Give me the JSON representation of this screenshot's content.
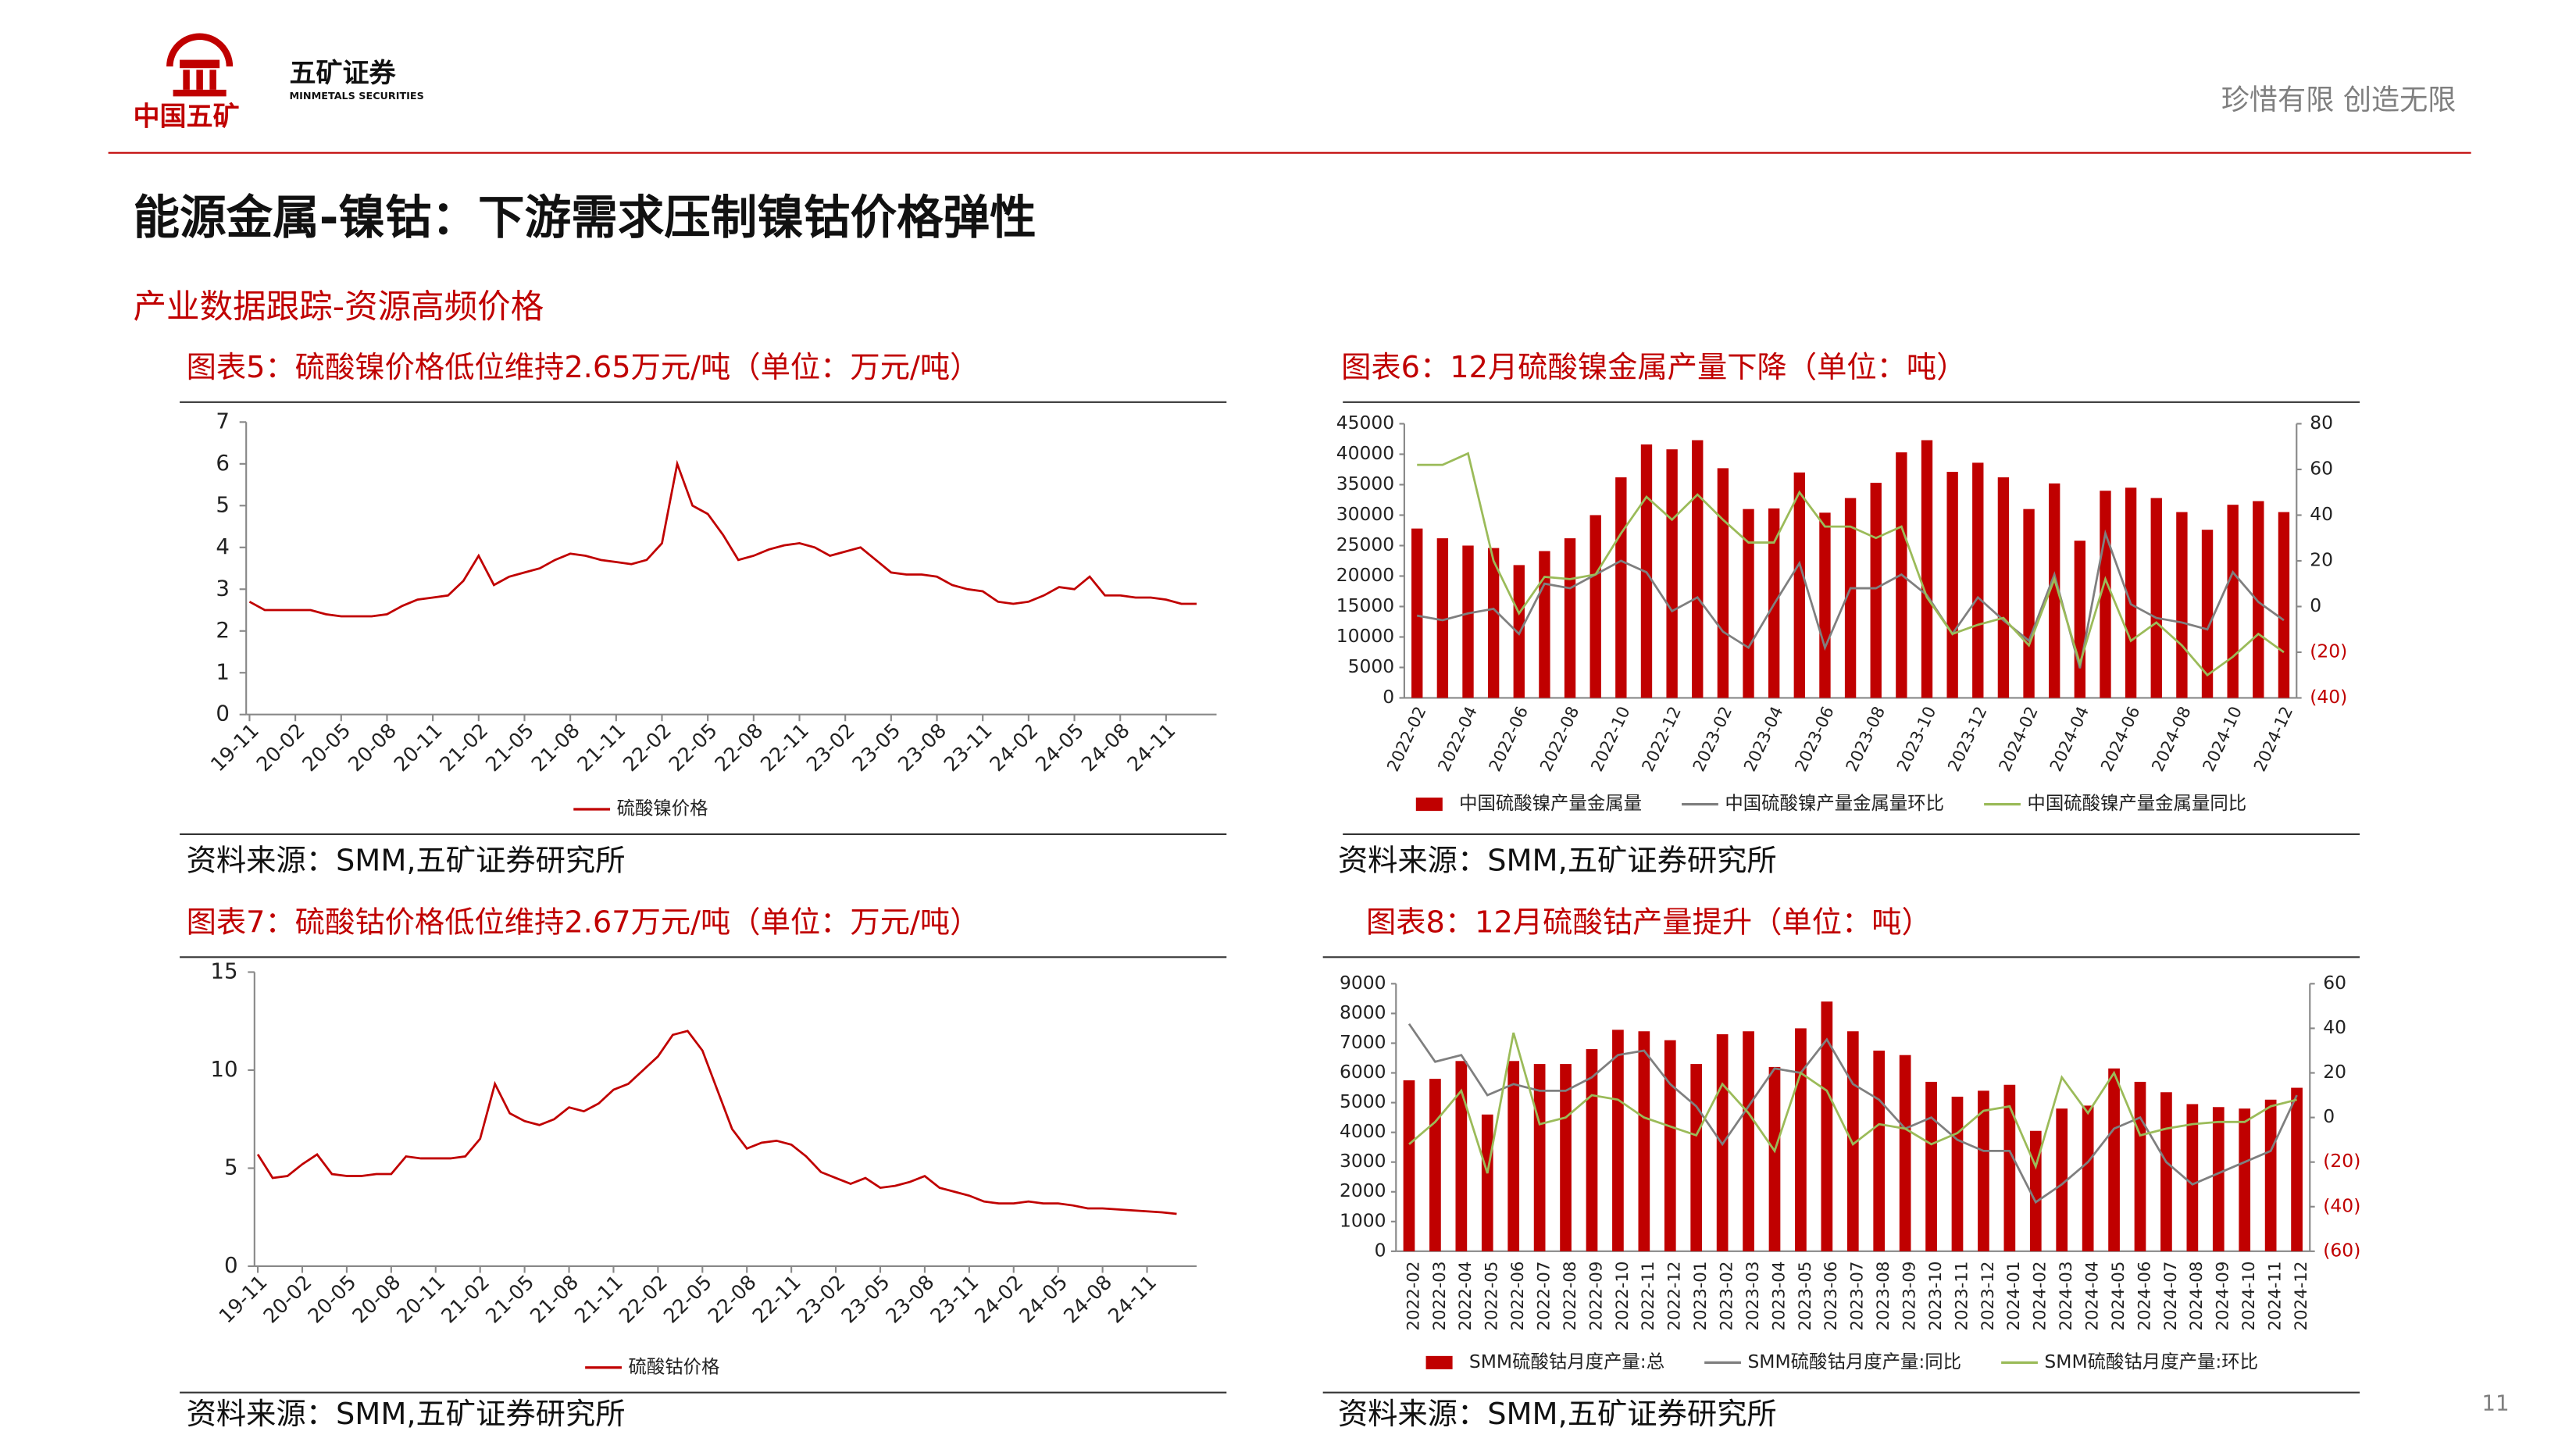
{
  "header": {
    "brand": "五矿证券",
    "brand_en": "MINMETALS SECURITIES",
    "group": "中国五矿",
    "slogan": "珍惜有限  创造无限",
    "title": "能源金属-镍钴：下游需求压制镍钴价格弹性",
    "subtitle": "产业数据跟踪-资源高频价格",
    "page": "11"
  },
  "chart_data": [
    {
      "type": "line",
      "title": "图表5：硫酸镍价格低位维持2.65万元/吨（单位：万元/吨）",
      "source": "资料来源：SMM,五矿证券研究所",
      "categories": [
        "19-11",
        null,
        null,
        "20-02",
        null,
        null,
        "20-05",
        null,
        null,
        "20-08",
        null,
        null,
        "20-11",
        null,
        null,
        "21-02",
        null,
        null,
        "21-05",
        null,
        null,
        "21-08",
        null,
        null,
        "21-11",
        null,
        null,
        "22-02",
        null,
        null,
        "22-05",
        null,
        null,
        "22-08",
        null,
        null,
        "22-11",
        null,
        null,
        "23-02",
        null,
        null,
        "23-05",
        null,
        null,
        "23-08",
        null,
        null,
        "23-11",
        null,
        null,
        "24-02",
        null,
        null,
        "24-05",
        null,
        null,
        "24-08",
        null,
        null,
        "24-11",
        null,
        null
      ],
      "series": [
        {
          "name": "硫酸镍价格",
          "color": "#c00000",
          "values": [
            2.7,
            2.5,
            2.5,
            2.5,
            2.5,
            2.4,
            2.35,
            2.35,
            2.35,
            2.4,
            2.6,
            2.75,
            2.8,
            2.85,
            3.2,
            3.8,
            3.1,
            3.3,
            3.4,
            3.5,
            3.7,
            3.85,
            3.8,
            3.7,
            3.65,
            3.6,
            3.7,
            4.1,
            6.0,
            5.0,
            4.8,
            4.3,
            3.7,
            3.8,
            3.95,
            4.05,
            4.1,
            4.0,
            3.8,
            3.9,
            4.0,
            3.7,
            3.4,
            3.35,
            3.35,
            3.3,
            3.1,
            3.0,
            2.95,
            2.7,
            2.65,
            2.7,
            2.85,
            3.05,
            3.0,
            3.3,
            2.85,
            2.85,
            2.8,
            2.8,
            2.75,
            2.65,
            2.65
          ]
        }
      ],
      "ylim": [
        0,
        7
      ],
      "yticks": [
        0,
        1,
        2,
        3,
        4,
        5,
        6,
        7
      ]
    },
    {
      "type": "bar",
      "title": "图表6：12月硫酸镍金属产量下降（单位：吨）",
      "source": "资料来源：SMM,五矿证券研究所",
      "categories": [
        "2022-02",
        null,
        "2022-04",
        null,
        "2022-06",
        null,
        "2022-08",
        null,
        "2022-10",
        null,
        "2022-12",
        null,
        "2023-02",
        null,
        "2023-04",
        null,
        "2023-06",
        null,
        "2023-08",
        null,
        "2023-10",
        null,
        "2023-12",
        null,
        "2024-02",
        null,
        "2024-04",
        null,
        "2024-06",
        null,
        "2024-08",
        null,
        "2024-10",
        null,
        "2024-12"
      ],
      "series": [
        {
          "name": "中国硫酸镍产量金属量",
          "color": "#c00000",
          "type": "bar",
          "values": [
            27800,
            26200,
            25000,
            24600,
            21800,
            24100,
            26200,
            30000,
            36200,
            41600,
            40800,
            42300,
            37700,
            31000,
            31100,
            37000,
            30400,
            32800,
            35300,
            40300,
            42300,
            37100,
            38600,
            36200,
            31000,
            35200,
            25800,
            34000,
            34500,
            32800,
            30500,
            27600,
            31700,
            32300,
            30500
          ]
        },
        {
          "name": "中国硫酸镍产量金属量环比",
          "color": "#7f7f7f",
          "type": "line",
          "axis": "y2",
          "values": [
            -4,
            -6,
            -3,
            -1,
            -12,
            10,
            8,
            14,
            20,
            15,
            -2,
            4,
            -11,
            -18,
            1,
            19,
            -18,
            8,
            8,
            14,
            5,
            -12,
            4,
            -6,
            -15,
            14,
            -27,
            32,
            1,
            -5,
            -7,
            -10,
            15,
            2,
            -6
          ]
        },
        {
          "name": "中国硫酸镍产量金属量同比",
          "color": "#9bbb59",
          "type": "line",
          "axis": "y2",
          "values": [
            62,
            62,
            67,
            20,
            -3,
            13,
            12,
            14,
            32,
            48,
            38,
            49,
            38,
            28,
            28,
            50,
            35,
            35,
            30,
            35,
            4,
            -12,
            -8,
            -5,
            -17,
            12,
            -25,
            12,
            -15,
            -7,
            -17,
            -30,
            -22,
            -12,
            -20
          ]
        }
      ],
      "ylim": [
        0,
        45000
      ],
      "yticks": [
        0,
        5000,
        10000,
        15000,
        20000,
        25000,
        30000,
        35000,
        40000,
        45000
      ],
      "y2lim": [
        -40,
        80
      ],
      "y2ticks": [
        {
          "value": -40,
          "label": "(40)"
        },
        {
          "value": -20,
          "label": "(20)"
        },
        0,
        20,
        40,
        60,
        80
      ]
    },
    {
      "type": "line",
      "title": "图表7：硫酸钴价格低位维持2.67万元/吨（单位：万元/吨）",
      "source": "资料来源：SMM,五矿证券研究所",
      "categories": [
        "19-11",
        null,
        null,
        "20-02",
        null,
        null,
        "20-05",
        null,
        null,
        "20-08",
        null,
        null,
        "20-11",
        null,
        null,
        "21-02",
        null,
        null,
        "21-05",
        null,
        null,
        "21-08",
        null,
        null,
        "21-11",
        null,
        null,
        "22-02",
        null,
        null,
        "22-05",
        null,
        null,
        "22-08",
        null,
        null,
        "22-11",
        null,
        null,
        "23-02",
        null,
        null,
        "23-05",
        null,
        null,
        "23-08",
        null,
        null,
        "23-11",
        null,
        null,
        "24-02",
        null,
        null,
        "24-05",
        null,
        null,
        "24-08",
        null,
        null,
        "24-11",
        null,
        null
      ],
      "series": [
        {
          "name": "硫酸钴价格",
          "color": "#c00000",
          "values": [
            5.7,
            4.5,
            4.6,
            5.2,
            5.7,
            4.7,
            4.6,
            4.6,
            4.7,
            4.7,
            5.6,
            5.5,
            5.5,
            5.5,
            5.6,
            6.5,
            9.3,
            7.8,
            7.4,
            7.2,
            7.5,
            8.1,
            7.9,
            8.3,
            9.0,
            9.3,
            10.0,
            10.7,
            11.8,
            12.0,
            11.0,
            9.0,
            7.0,
            6.0,
            6.3,
            6.4,
            6.2,
            5.6,
            4.8,
            4.5,
            4.2,
            4.5,
            4.0,
            4.1,
            4.3,
            4.6,
            4.0,
            3.8,
            3.6,
            3.3,
            3.2,
            3.2,
            3.3,
            3.2,
            3.2,
            3.1,
            2.95,
            2.95,
            2.9,
            2.85,
            2.8,
            2.75,
            2.67
          ]
        }
      ],
      "ylim": [
        0,
        15
      ],
      "yticks": [
        0,
        5,
        10,
        15
      ]
    },
    {
      "type": "bar",
      "title": "图表8：12月硫酸钴产量提升（单位：吨）",
      "source": "资料来源：SMM,五矿证券研究所",
      "categories": [
        "2022-02",
        "2022-03",
        "2022-04",
        "2022-05",
        "2022-06",
        "2022-07",
        "2022-08",
        "2022-09",
        "2022-10",
        "2022-11",
        "2022-12",
        "2023-01",
        "2023-02",
        "2023-03",
        "2023-04",
        "2023-05",
        "2023-06",
        "2023-07",
        "2023-08",
        "2023-09",
        "2023-10",
        "2023-11",
        "2023-12",
        "2024-01",
        "2024-02",
        "2024-03",
        "2024-04",
        "2024-05",
        "2024-06",
        "2024-07",
        "2024-08",
        "2024-09",
        "2024-10",
        "2024-11",
        "2024-12"
      ],
      "series": [
        {
          "name": "SMM硫酸钴月度产量:总",
          "color": "#c00000",
          "type": "bar",
          "values": [
            5750,
            5800,
            6400,
            4600,
            6400,
            6300,
            6300,
            6800,
            7450,
            7400,
            7100,
            6300,
            7300,
            7400,
            6200,
            7500,
            8400,
            7400,
            6750,
            6600,
            5700,
            5200,
            5400,
            5600,
            4050,
            4800,
            4900,
            6150,
            5700,
            5350,
            4950,
            4850,
            4800,
            5100,
            5500
          ]
        },
        {
          "name": "SMM硫酸钴月度产量:同比",
          "color": "#7f7f7f",
          "type": "line",
          "axis": "y2",
          "values": [
            42,
            25,
            28,
            10,
            15,
            12,
            12,
            18,
            28,
            30,
            15,
            5,
            -12,
            5,
            22,
            20,
            35,
            15,
            8,
            -5,
            0,
            -10,
            -15,
            -15,
            -38,
            -30,
            -20,
            -5,
            0,
            -20,
            -30,
            -25,
            -20,
            -15,
            10
          ]
        },
        {
          "name": "SMM硫酸钴月度产量:环比",
          "color": "#9bbb59",
          "type": "line",
          "axis": "y2",
          "values": [
            -12,
            -2,
            12,
            -25,
            38,
            -3,
            0,
            10,
            8,
            0,
            -4,
            -8,
            15,
            2,
            -15,
            20,
            12,
            -12,
            -3,
            -5,
            -12,
            -7,
            3,
            5,
            -22,
            18,
            2,
            20,
            -8,
            -5,
            -3,
            -2,
            -2,
            5,
            8
          ]
        }
      ],
      "ylim": [
        0,
        9000
      ],
      "yticks": [
        0,
        1000,
        2000,
        3000,
        4000,
        5000,
        6000,
        7000,
        8000,
        9000
      ],
      "y2lim": [
        -60,
        60
      ],
      "y2ticks": [
        {
          "value": -60,
          "label": "(60)"
        },
        {
          "value": -40,
          "label": "(40)"
        },
        {
          "value": -20,
          "label": "(20)"
        },
        0,
        20,
        40,
        60
      ]
    }
  ]
}
